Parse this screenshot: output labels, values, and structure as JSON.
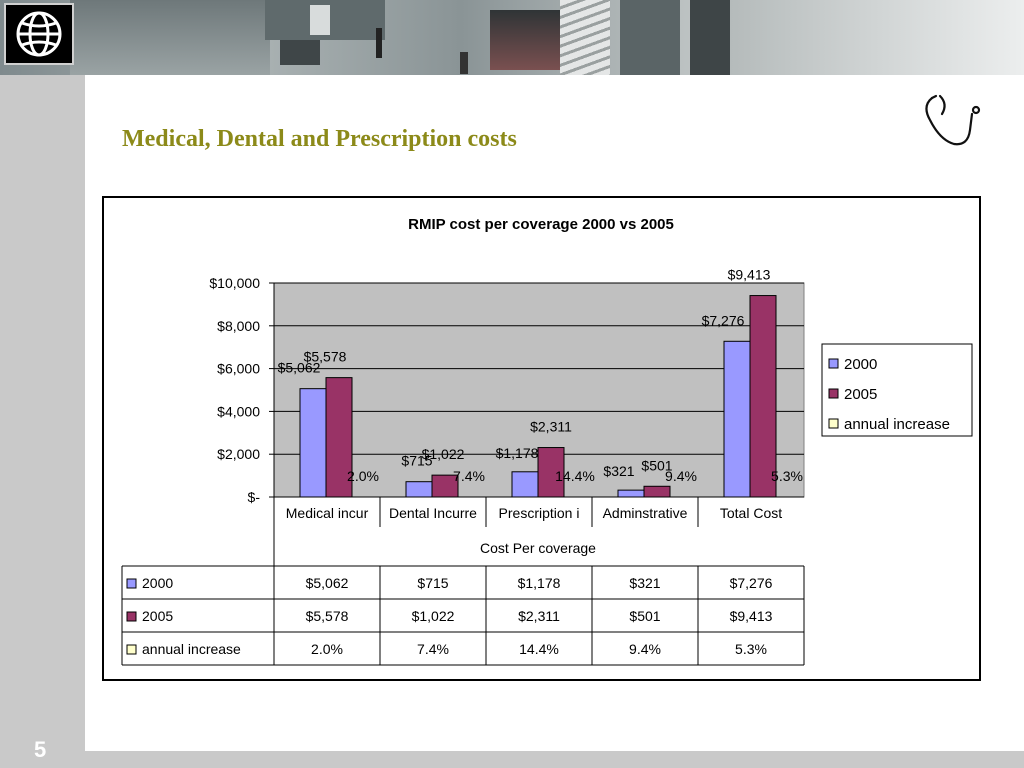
{
  "slide": {
    "title": "Medical, Dental and Prescription costs",
    "page_number": "5"
  },
  "colors": {
    "title": "#8c8a19",
    "plot_bg": "#c0c0c0",
    "series_2000": "#9999ff",
    "series_2005": "#993366",
    "series_increase": "#ffffcc"
  },
  "chart_data": {
    "type": "bar",
    "title": "RMIP cost  per coverage 2000 vs 2005",
    "xlabel": "Cost Per coverage",
    "ylabel": "",
    "categories": [
      "Medical incurred",
      "Dental Incurred",
      "Prescription incurred",
      "Adminstrative",
      "Total Cost"
    ],
    "category_labels": [
      "Medical incur",
      "Dental Incurre",
      "Prescription i",
      "Adminstrative",
      "Total Cost"
    ],
    "ylim": [
      0,
      10000
    ],
    "yticks": [
      0,
      2000,
      4000,
      6000,
      8000,
      10000
    ],
    "ytick_labels": [
      "$-",
      "$2,000",
      "$4,000",
      "$6,000",
      "$8,000",
      "$10,000"
    ],
    "grid": true,
    "legend_position": "right",
    "series": [
      {
        "name": "2000",
        "values": [
          5062,
          715,
          1178,
          321,
          7276
        ],
        "labels": [
          "$5,062",
          "$715",
          "$1,178",
          "$321",
          "$7,276"
        ]
      },
      {
        "name": "2005",
        "values": [
          5578,
          1022,
          2311,
          501,
          9413
        ],
        "labels": [
          "$5,578",
          "$1,022",
          "$2,311",
          "$501",
          "$9,413"
        ]
      },
      {
        "name": "annual increase",
        "values": [
          2.0,
          7.4,
          14.4,
          9.4,
          5.3
        ],
        "labels": [
          "2.0%",
          "7.4%",
          "14.4%",
          "9.4%",
          "5.3%"
        ]
      }
    ]
  }
}
